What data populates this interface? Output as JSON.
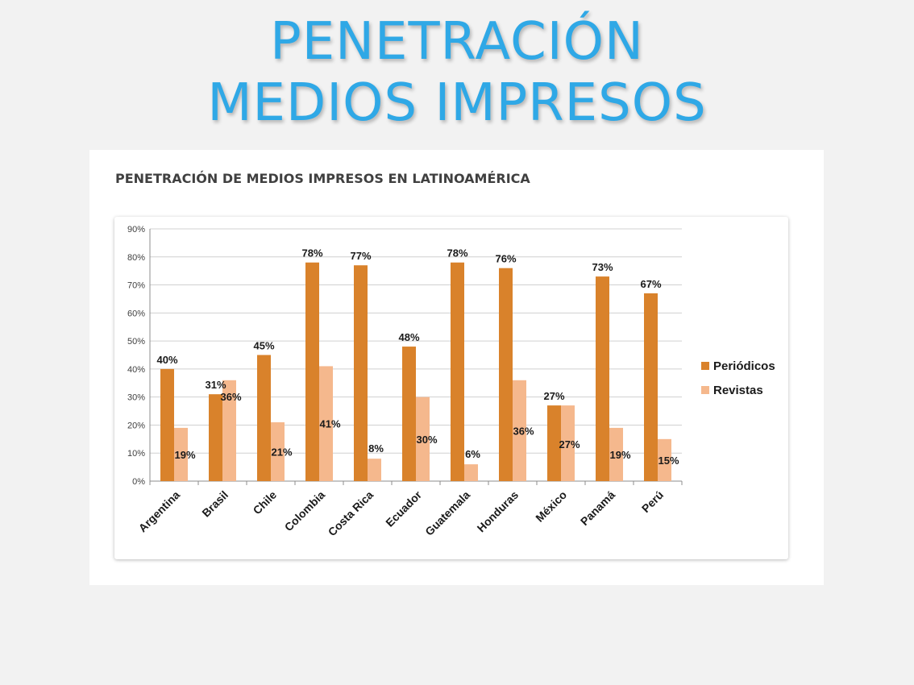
{
  "slide": {
    "title_line1": "PENETRACIÓN",
    "title_line2": "MEDIOS IMPRESOS"
  },
  "chart_data": {
    "type": "bar",
    "title": "PENETRACIÓN DE MEDIOS IMPRESOS EN LATINOAMÉRICA",
    "categories": [
      "Argentina",
      "Brasil",
      "Chile",
      "Colombia",
      "Costa Rica",
      "Ecuador",
      "Guatemala",
      "Honduras",
      "México",
      "Panamá",
      "Perú"
    ],
    "series": [
      {
        "name": "Periódicos",
        "color": "#d9822b",
        "values": [
          40,
          31,
          45,
          78,
          77,
          48,
          78,
          76,
          27,
          73,
          67
        ]
      },
      {
        "name": "Revistas",
        "color": "#f5b88d",
        "values": [
          19,
          36,
          21,
          41,
          8,
          30,
          6,
          36,
          27,
          19,
          15
        ]
      }
    ],
    "ylim": [
      0,
      90
    ],
    "y_ticks": [
      0,
      10,
      20,
      30,
      40,
      50,
      60,
      70,
      80,
      90
    ],
    "y_tick_suffix": "%",
    "grid": true,
    "legend_position": "right",
    "xlabel": "",
    "ylabel": ""
  }
}
